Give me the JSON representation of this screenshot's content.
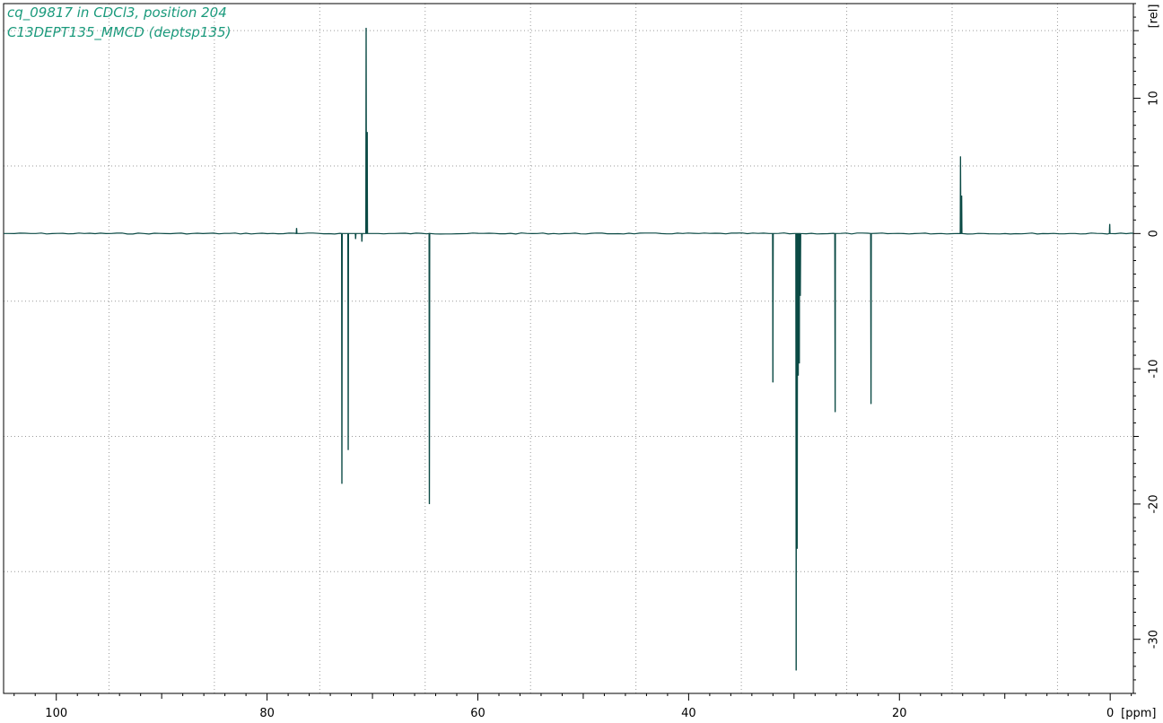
{
  "title_lines": [
    "cq_09817 in CDCl3, position 204",
    "C13DEPT135_MMCD (deptsp135)"
  ],
  "colors": {
    "spectrum": "#0b4a45",
    "title": "#1a9a7c",
    "grid": "#9a9a9a",
    "frame": "#000000"
  },
  "chart_data": {
    "type": "line",
    "title": "cq_09817 in CDCl3, position 204",
    "subtitle": "C13DEPT135_MMCD (deptsp135)",
    "xlabel": "[ppm]",
    "ylabel": "[rel]",
    "xlim": [
      105.0,
      -2.2
    ],
    "ylim": [
      -34.0,
      17.0
    ],
    "x_reversed": true,
    "y_axis_position": "right",
    "grid": true,
    "x_ticks": [
      100,
      80,
      60,
      40,
      20,
      0
    ],
    "x_tick_labels": [
      "100",
      "80",
      "60",
      "40",
      "20",
      "0"
    ],
    "x_unit_label": "[ppm]",
    "y_ticks": [
      10,
      0,
      -10,
      -20,
      -30
    ],
    "y_tick_labels": [
      "10",
      "0",
      "-10",
      "-20",
      "-30"
    ],
    "y_unit_label": "[rel]",
    "series": [
      {
        "peaks_ppm": [
          77.2,
          72.9,
          72.3,
          71.6,
          71.0,
          70.6,
          70.5,
          64.6,
          32.0,
          29.8,
          29.7,
          29.6,
          29.5,
          29.4,
          26.1,
          22.7,
          14.2,
          14.1,
          0.05
        ],
        "intensities": [
          0.4,
          -18.5,
          -16.0,
          -0.4,
          -0.6,
          15.2,
          7.5,
          -20.0,
          -11.0,
          -32.3,
          -23.3,
          -10.5,
          -9.6,
          -4.6,
          -13.2,
          -12.6,
          5.7,
          2.8,
          0.7
        ]
      }
    ]
  }
}
